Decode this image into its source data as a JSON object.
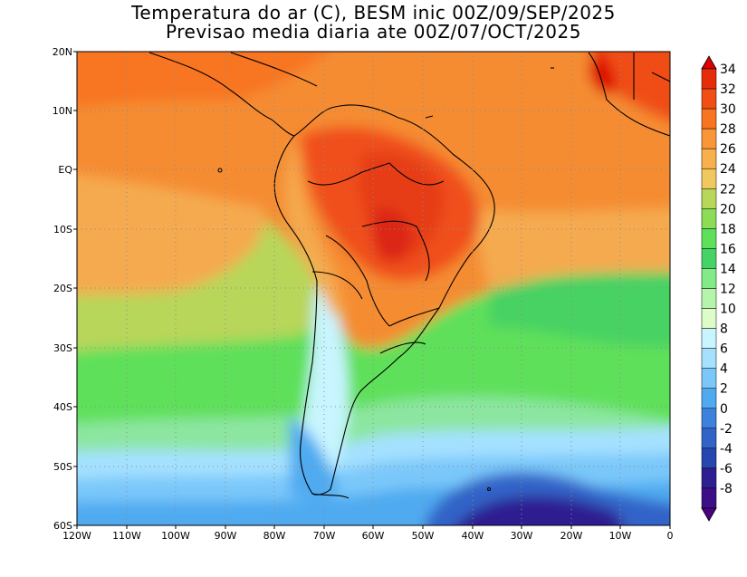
{
  "title_line1": "Temperatura do ar (C), BESM inic 00Z/09/SEP/2025",
  "title_line2": "Previsao media diaria ate 00Z/07/OCT/2025",
  "lat_labels": [
    "20N",
    "10N",
    "EQ",
    "10S",
    "20S",
    "30S",
    "40S",
    "50S",
    "60S"
  ],
  "lon_labels": [
    "120W",
    "110W",
    "100W",
    "90W",
    "80W",
    "70W",
    "60W",
    "50W",
    "40W",
    "30W",
    "20W",
    "10W",
    "0"
  ],
  "colorbar_labels": [
    "34",
    "32",
    "30",
    "28",
    "26",
    "24",
    "22",
    "20",
    "18",
    "16",
    "14",
    "12",
    "10",
    "8",
    "6",
    "4",
    "2",
    "0",
    "-2",
    "-4",
    "-6",
    "-8"
  ],
  "colorbar_colors": [
    "#dc0000",
    "#e62d0a",
    "#f04e14",
    "#f87420",
    "#fa9637",
    "#f7b04b",
    "#f0c85f",
    "#b8d65a",
    "#8cdc55",
    "#5fe05a",
    "#46d264",
    "#82eb87",
    "#b4f5aa",
    "#dcfcc8",
    "#c8f5ff",
    "#a5e1ff",
    "#7ac8fa",
    "#50aaf0",
    "#3c82dc",
    "#3264c8",
    "#2846af",
    "#2d1e91",
    "#3c0f87",
    "#4b0082"
  ],
  "colors": {
    "hot": "#e63c14",
    "warm": "#f58232",
    "mild": "#f5aa50",
    "green": "#64e164",
    "cold": "#50aaf0",
    "frigid": "#3c1496"
  }
}
